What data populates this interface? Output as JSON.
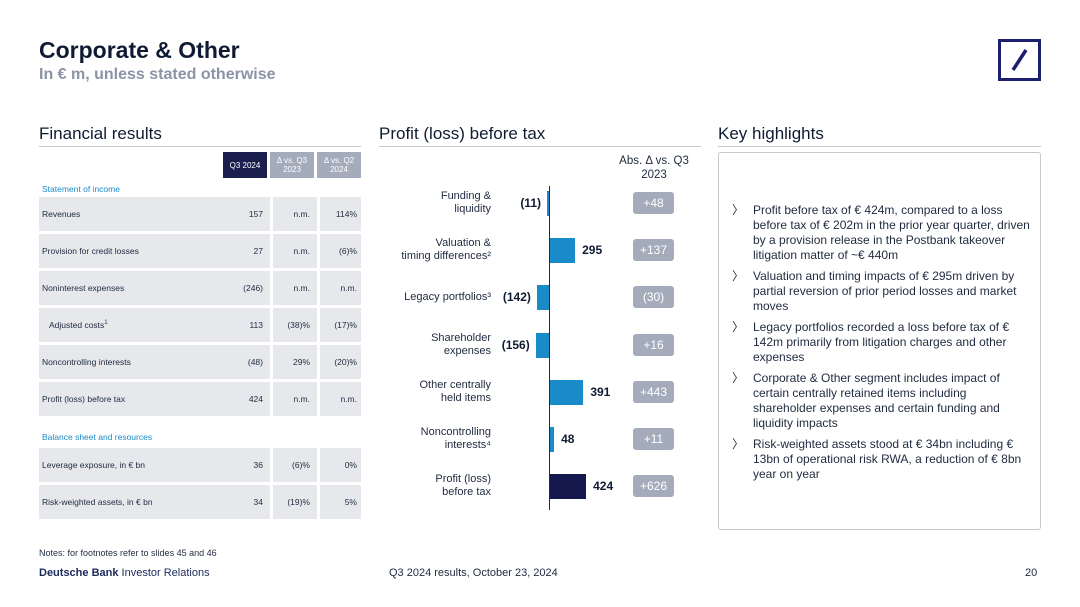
{
  "header": {
    "title": "Corporate & Other",
    "subtitle": "In € m, unless stated otherwise"
  },
  "sections": {
    "financial": "Financial results",
    "profit": "Profit (loss) before tax",
    "highlights": "Key highlights"
  },
  "table": {
    "columns": [
      "Q3 2024",
      "Δ vs. Q3 2023",
      "Δ vs. Q2 2024"
    ],
    "income_label": "Statement of income",
    "income_rows": [
      {
        "label": "Revenues",
        "sup": "",
        "indent": false,
        "values": [
          "157",
          "n.m.",
          "114%"
        ]
      },
      {
        "label": "Provision for credit losses",
        "sup": "",
        "indent": false,
        "values": [
          "27",
          "n.m.",
          "(6)%"
        ]
      },
      {
        "label": "Noninterest expenses",
        "sup": "",
        "indent": false,
        "values": [
          "(246)",
          "n.m.",
          "n.m."
        ]
      },
      {
        "label": "Adjusted costs",
        "sup": "1",
        "indent": true,
        "values": [
          "113",
          "(38)%",
          "(17)%"
        ]
      },
      {
        "label": "Noncontrolling interests",
        "sup": "",
        "indent": false,
        "values": [
          "(48)",
          "29%",
          "(20)%"
        ]
      },
      {
        "label": "Profit (loss) before tax",
        "sup": "",
        "indent": false,
        "values": [
          "424",
          "n.m.",
          "n.m."
        ]
      }
    ],
    "balance_label": "Balance sheet and resources",
    "balance_rows": [
      {
        "label": "Leverage exposure, in € bn",
        "sup": "",
        "indent": false,
        "values": [
          "36",
          "(6)%",
          "0%"
        ]
      },
      {
        "label": "Risk-weighted assets, in € bn",
        "sup": "",
        "indent": false,
        "values": [
          "34",
          "(19)%",
          "5%"
        ]
      }
    ]
  },
  "chart_data": {
    "type": "bar",
    "orientation": "horizontal",
    "abs_header": "Abs. Δ vs. Q3 2023",
    "categories": [
      [
        "Funding &",
        "liquidity"
      ],
      [
        "Valuation &",
        "timing differences²"
      ],
      [
        "Legacy portfolios³"
      ],
      [
        "Shareholder",
        "expenses"
      ],
      [
        "Other centrally",
        "held items"
      ],
      [
        "Noncontrolling",
        "interests⁴"
      ],
      [
        "Profit (loss)",
        "before tax"
      ]
    ],
    "values": [
      -11,
      295,
      -142,
      -156,
      391,
      48,
      424
    ],
    "value_labels": [
      "(11)",
      "295",
      "(142)",
      "(156)",
      "391",
      "48",
      "424"
    ],
    "abs_delta": [
      "+48",
      "+137",
      "(30)",
      "+16",
      "+443",
      "+11",
      "+626"
    ],
    "colors": {
      "bar": "#1a8bc9",
      "total": "#14184d",
      "pill": "#a4acbc"
    }
  },
  "highlights": [
    "Profit before tax of € 424m, compared to a loss before tax of € 202m in the prior year quarter, driven by a provision release in the Postbank takeover litigation matter of ~€ 440m",
    "Valuation and timing impacts of € 295m driven by partial reversion of prior period losses and market moves",
    "Legacy portfolios recorded a loss before tax of € 142m primarily from litigation charges and other expenses",
    "Corporate & Other segment includes impact of certain centrally retained items including shareholder expenses and certain funding and liquidity impacts",
    "Risk-weighted assets stood at € 34bn including € 13bn of operational risk RWA, a reduction of € 8bn year on year"
  ],
  "notes": "Notes: for footnotes refer to slides 45 and 46",
  "footer": {
    "brand": "Deutsche Bank",
    "brand_rest": " Investor Relations",
    "center": "Q3 2024 results, October 23, 2024",
    "page": "20"
  }
}
